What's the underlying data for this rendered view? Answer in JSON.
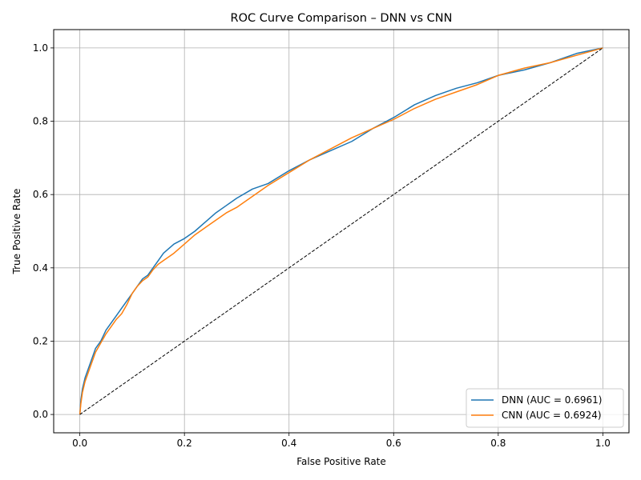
{
  "chart_data": {
    "type": "line",
    "title": "ROC Curve Comparison – DNN vs CNN",
    "xlabel": "False Positive Rate",
    "ylabel": "True Positive Rate",
    "xlim": [
      -0.05,
      1.05
    ],
    "ylim": [
      -0.05,
      1.05
    ],
    "xticks": [
      0.0,
      0.2,
      0.4,
      0.6,
      0.8,
      1.0
    ],
    "yticks": [
      0.0,
      0.2,
      0.4,
      0.6,
      0.8,
      1.0
    ],
    "xtick_labels": [
      "0.0",
      "0.2",
      "0.4",
      "0.6",
      "0.8",
      "1.0"
    ],
    "ytick_labels": [
      "0.0",
      "0.2",
      "0.4",
      "0.6",
      "0.8",
      "1.0"
    ],
    "grid": true,
    "legend_position": "lower-right",
    "series": [
      {
        "name": "DNN (AUC = 0.6961)",
        "color": "#1f77b4",
        "x": [
          0.0,
          0.002,
          0.005,
          0.01,
          0.015,
          0.02,
          0.03,
          0.04,
          0.05,
          0.06,
          0.07,
          0.08,
          0.09,
          0.1,
          0.11,
          0.12,
          0.13,
          0.14,
          0.15,
          0.16,
          0.18,
          0.2,
          0.22,
          0.24,
          0.26,
          0.28,
          0.3,
          0.33,
          0.36,
          0.4,
          0.44,
          0.48,
          0.52,
          0.56,
          0.6,
          0.64,
          0.68,
          0.72,
          0.76,
          0.8,
          0.85,
          0.9,
          0.95,
          1.0
        ],
        "y": [
          0.0,
          0.04,
          0.07,
          0.1,
          0.12,
          0.14,
          0.18,
          0.2,
          0.23,
          0.25,
          0.27,
          0.29,
          0.31,
          0.33,
          0.35,
          0.37,
          0.38,
          0.4,
          0.42,
          0.44,
          0.465,
          0.48,
          0.5,
          0.525,
          0.55,
          0.57,
          0.59,
          0.615,
          0.63,
          0.665,
          0.695,
          0.72,
          0.745,
          0.78,
          0.81,
          0.845,
          0.87,
          0.89,
          0.905,
          0.925,
          0.94,
          0.96,
          0.985,
          1.0
        ]
      },
      {
        "name": "CNN (AUC = 0.6924)",
        "color": "#ff7f0e",
        "x": [
          0.0,
          0.002,
          0.005,
          0.01,
          0.015,
          0.02,
          0.03,
          0.04,
          0.05,
          0.06,
          0.07,
          0.08,
          0.09,
          0.1,
          0.11,
          0.12,
          0.13,
          0.14,
          0.15,
          0.16,
          0.18,
          0.2,
          0.22,
          0.24,
          0.26,
          0.28,
          0.3,
          0.33,
          0.36,
          0.4,
          0.44,
          0.48,
          0.52,
          0.56,
          0.6,
          0.64,
          0.68,
          0.72,
          0.76,
          0.8,
          0.85,
          0.9,
          0.95,
          1.0
        ],
        "y": [
          0.0,
          0.03,
          0.06,
          0.09,
          0.11,
          0.13,
          0.17,
          0.195,
          0.22,
          0.24,
          0.26,
          0.275,
          0.3,
          0.33,
          0.35,
          0.365,
          0.375,
          0.395,
          0.41,
          0.42,
          0.44,
          0.465,
          0.49,
          0.51,
          0.53,
          0.55,
          0.565,
          0.595,
          0.625,
          0.66,
          0.695,
          0.725,
          0.755,
          0.78,
          0.805,
          0.835,
          0.86,
          0.88,
          0.9,
          0.925,
          0.945,
          0.96,
          0.98,
          1.0
        ]
      },
      {
        "name": "",
        "color": "#000000",
        "style": "dashed",
        "x": [
          0.0,
          1.0
        ],
        "y": [
          0.0,
          1.0
        ]
      }
    ]
  }
}
